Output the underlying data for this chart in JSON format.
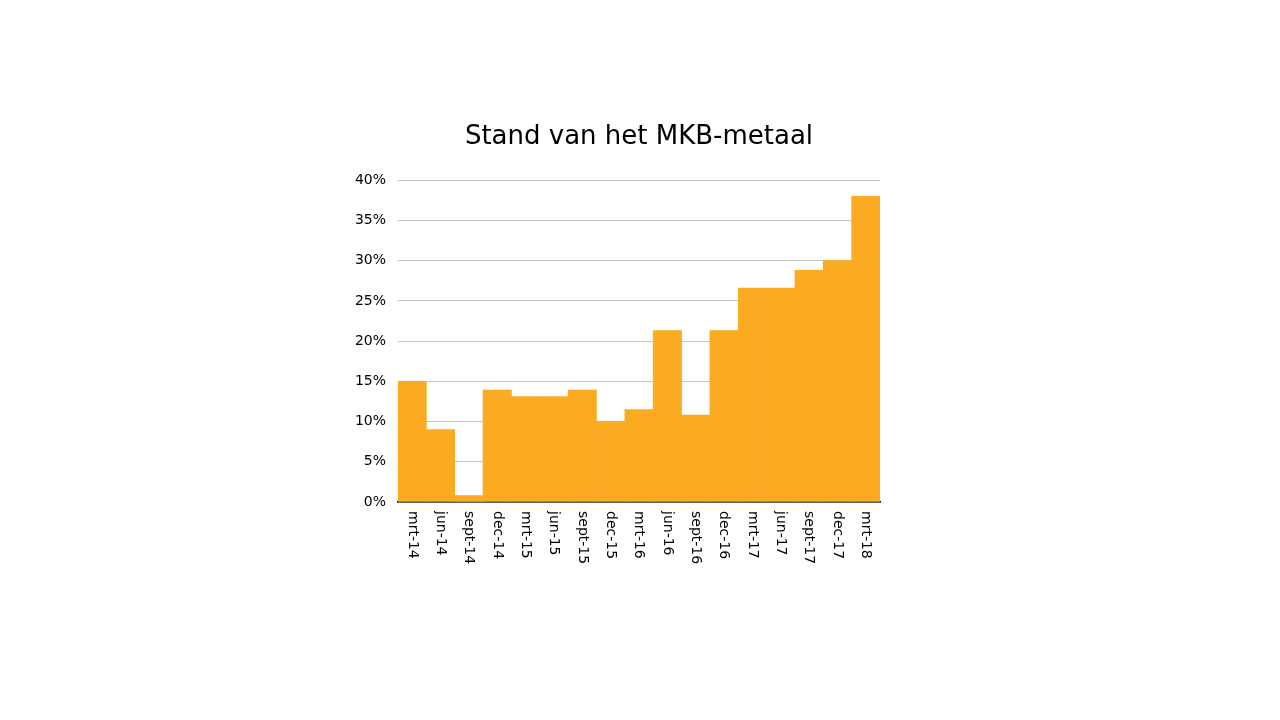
{
  "chart_data": {
    "type": "bar",
    "title": "Stand van het MKB-metaal",
    "categories": [
      "mrt-14",
      "jun-14",
      "sept-14",
      "dec-14",
      "mrt-15",
      "jun-15",
      "sept-15",
      "dec-15",
      "mrt-16",
      "jun-16",
      "sept-16",
      "dec-16",
      "mrt-17",
      "jun-17",
      "sept-17",
      "dec-17",
      "mrt-18"
    ],
    "values": [
      15.0,
      9.0,
      0.8,
      13.9,
      13.1,
      13.1,
      13.9,
      10.0,
      11.5,
      21.3,
      10.8,
      21.3,
      26.6,
      26.6,
      28.8,
      30.0,
      38.0
    ],
    "color": "#fbab21",
    "ylim": [
      0,
      40
    ],
    "yticks": [
      {
        "value": 0,
        "label": "0%"
      },
      {
        "value": 5,
        "label": "5%"
      },
      {
        "value": 10,
        "label": "10%"
      },
      {
        "value": 15,
        "label": "15%"
      },
      {
        "value": 20,
        "label": "20%"
      },
      {
        "value": 25,
        "label": "25%"
      },
      {
        "value": 30,
        "label": "30%"
      },
      {
        "value": 35,
        "label": "35%"
      },
      {
        "value": 40,
        "label": "40%"
      }
    ],
    "grid": "y"
  }
}
